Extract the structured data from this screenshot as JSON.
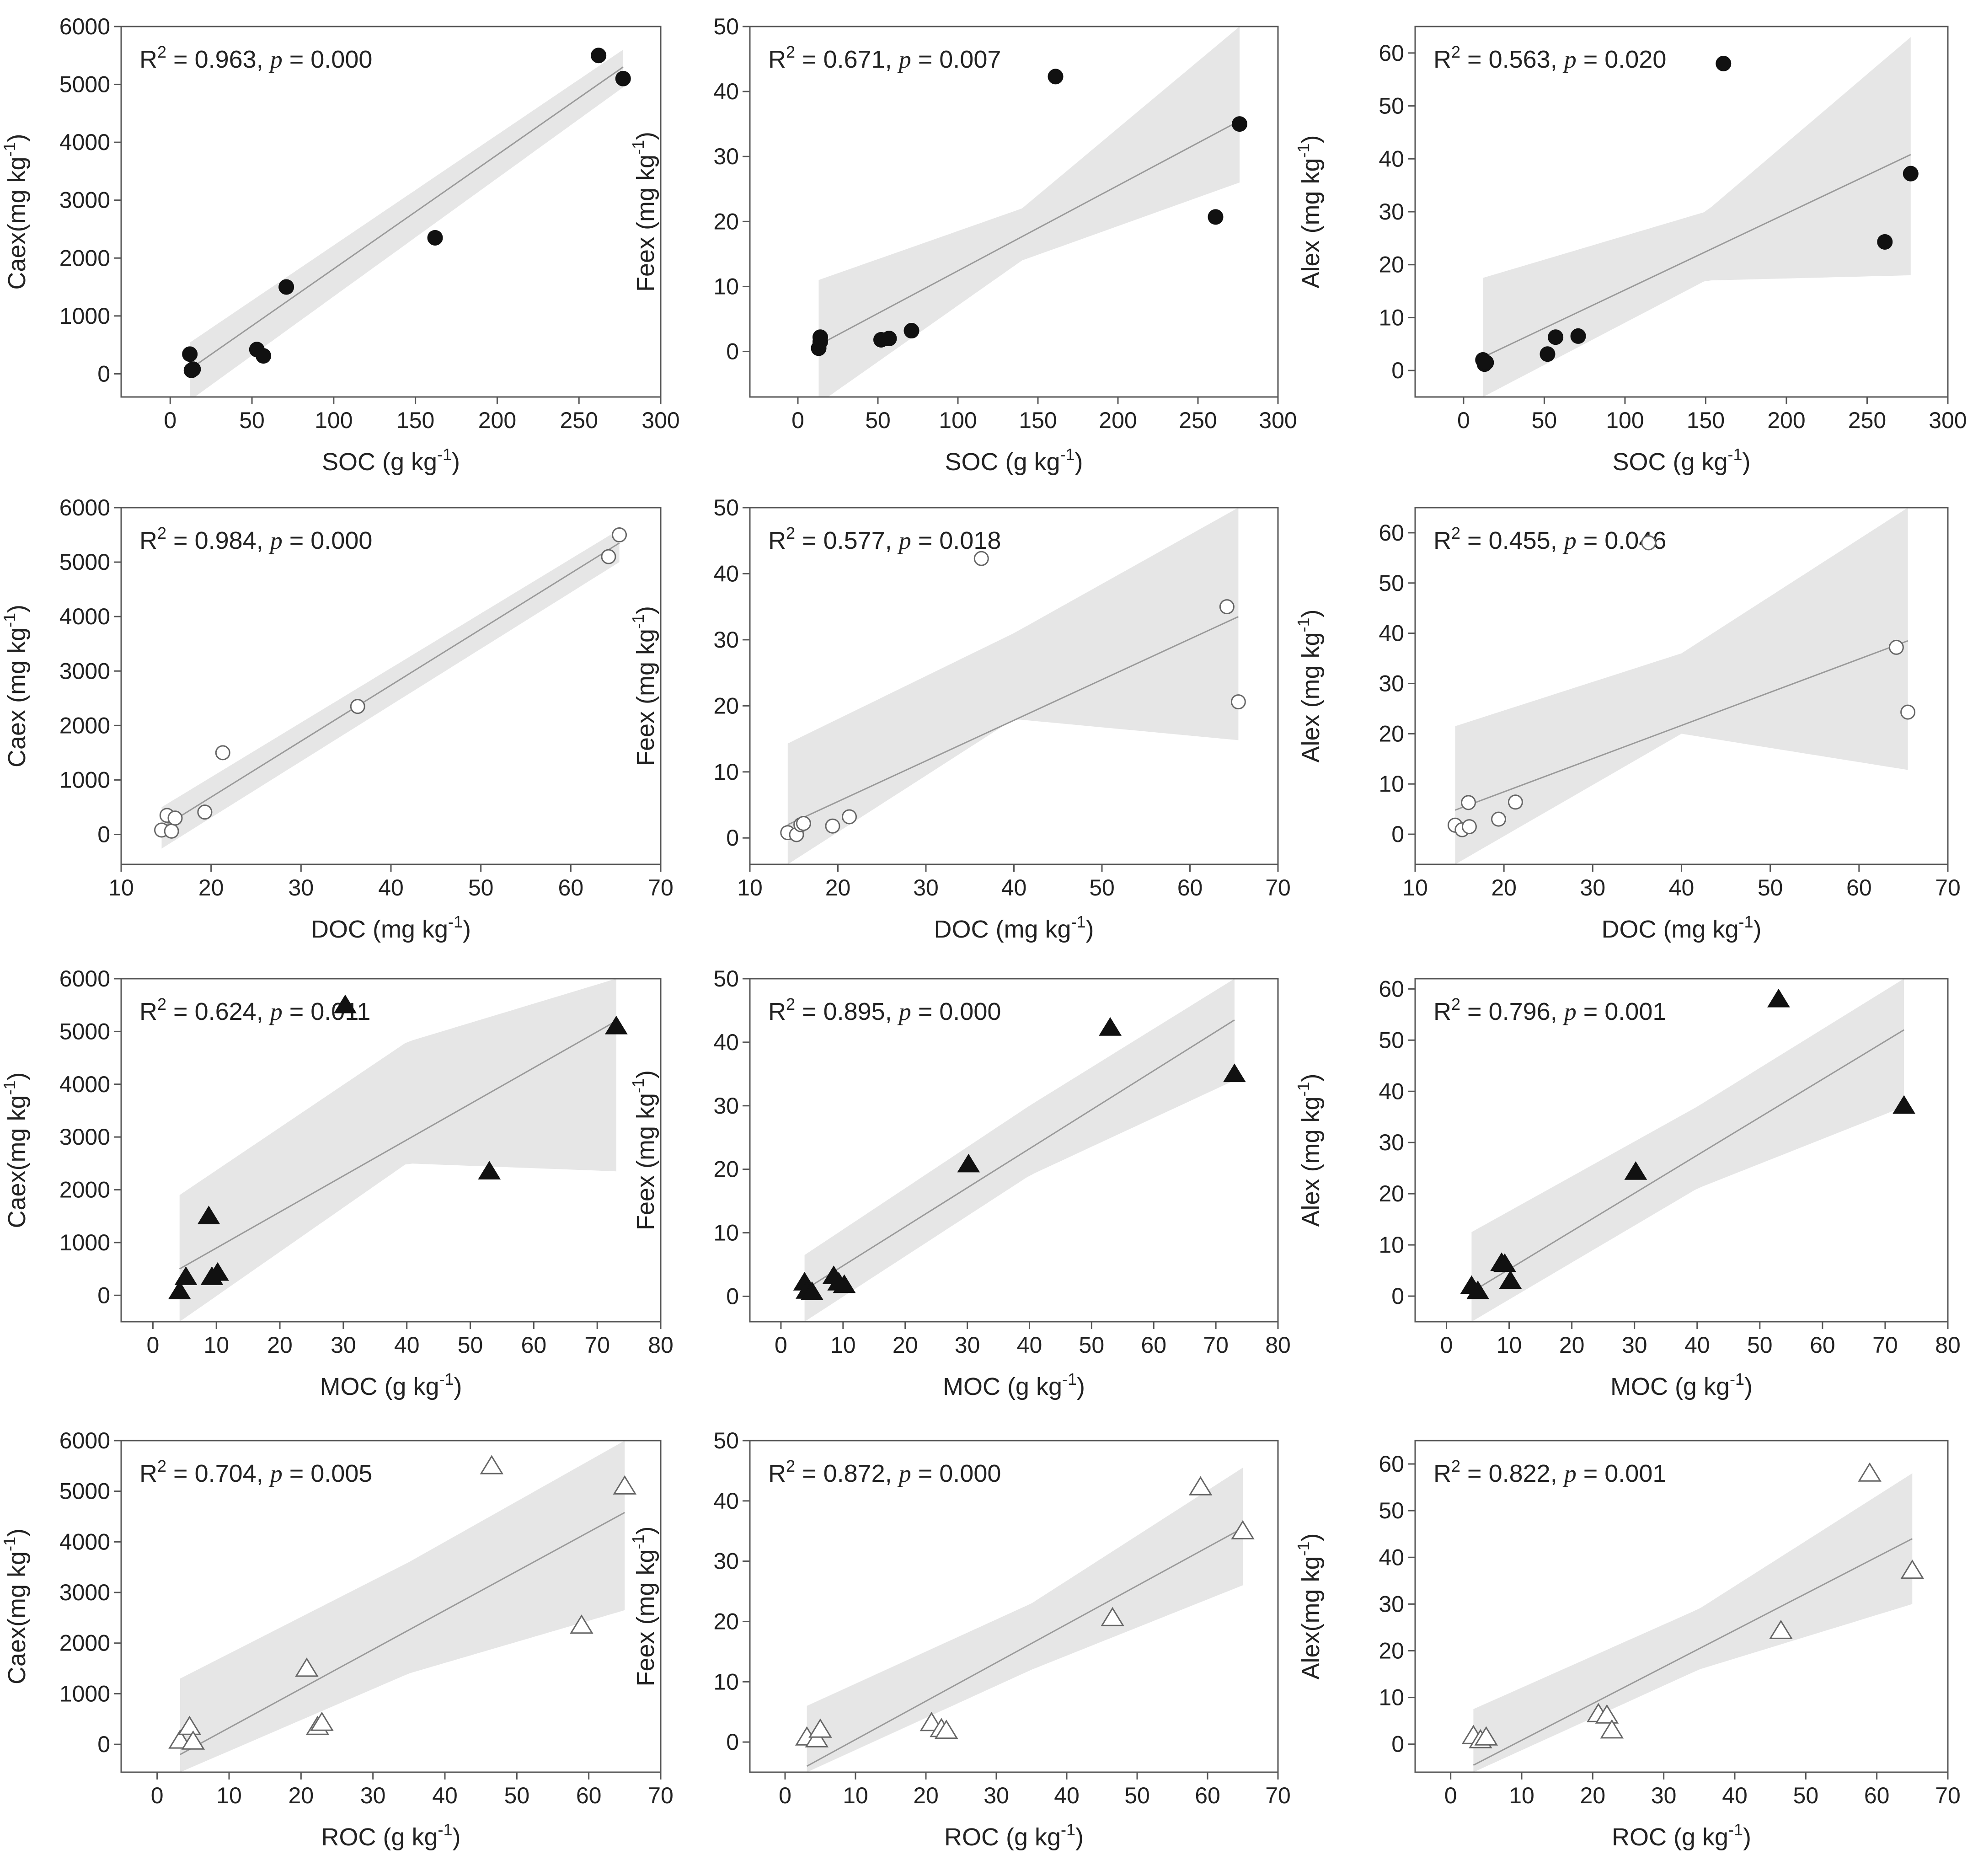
{
  "figure": {
    "background": "#ffffff",
    "band_color": "#e6e6e6",
    "line_color": "#9a9a9a",
    "text_color": "#222222"
  },
  "chart_data": [
    {
      "type": "scatter",
      "panel": "a1",
      "marker": "filled-circle",
      "xlabel": "SOC (g kg",
      "xunit_exp": "-1",
      "ylabel": "Caex(mg kg",
      "yunit_exp": "-1",
      "xlim": [
        -30,
        300
      ],
      "ylim": [
        -400,
        6000
      ],
      "xticks": [
        0,
        50,
        100,
        150,
        200,
        250,
        300
      ],
      "yticks": [
        0,
        1000,
        2000,
        3000,
        4000,
        5000,
        6000
      ],
      "annotation": {
        "prefix": "R",
        "sup": "2",
        "r2_text": " =  0.963, ",
        "p_label": "p",
        "p_text": " = 0.000"
      },
      "x": [
        12,
        14,
        13,
        53,
        57,
        71,
        162,
        262,
        277
      ],
      "y": [
        340,
        80,
        60,
        420,
        310,
        1500,
        2350,
        5500,
        5100
      ],
      "fit": {
        "x": [
          12,
          277
        ],
        "y": [
          80,
          5300
        ]
      },
      "band": {
        "x": [
          12,
          277
        ],
        "upper": [
          540,
          5600
        ],
        "lower": [
          -460,
          4950
        ]
      }
    },
    {
      "type": "scatter",
      "panel": "a2",
      "marker": "filled-circle",
      "xlabel": "SOC (g kg",
      "xunit_exp": "-1",
      "ylabel": "Feex (mg kg",
      "yunit_exp": "-1",
      "xlim": [
        -30,
        300
      ],
      "ylim": [
        -7,
        50
      ],
      "xticks": [
        0,
        50,
        100,
        150,
        200,
        250,
        300
      ],
      "yticks": [
        0,
        10,
        20,
        30,
        40,
        50
      ],
      "annotation": {
        "prefix": "R",
        "sup": "2",
        "r2_text": " = 0.671, ",
        "p_label": "p",
        "p_text": " = 0.007"
      },
      "x": [
        13,
        14,
        14,
        52,
        57,
        71,
        161,
        261,
        276
      ],
      "y": [
        0.5,
        1.5,
        2.2,
        1.8,
        2.0,
        3.2,
        42.3,
        20.7,
        35.0
      ],
      "fit": {
        "x": [
          13,
          276
        ],
        "y": [
          1.0,
          35.5
        ]
      },
      "band": {
        "x": [
          13,
          140,
          276
        ],
        "upper": [
          11.0,
          22.0,
          50.0
        ],
        "lower": [
          -8.0,
          14.0,
          26.0
        ]
      }
    },
    {
      "type": "scatter",
      "panel": "a3",
      "marker": "filled-circle",
      "xlabel": "SOC (g kg",
      "xunit_exp": "-1",
      "ylabel": "Alex (mg kg",
      "yunit_exp": "-1",
      "xlim": [
        -30,
        300
      ],
      "ylim": [
        -5,
        65
      ],
      "xticks": [
        0,
        50,
        100,
        150,
        200,
        250,
        300
      ],
      "yticks": [
        0,
        10,
        20,
        30,
        40,
        50,
        60
      ],
      "annotation": {
        "prefix": "R",
        "sup": "2",
        "r2_text": " = 0.563, ",
        "p_label": "p",
        "p_text": " = 0.020"
      },
      "x": [
        12,
        13,
        14,
        52,
        57,
        71,
        161,
        261,
        277
      ],
      "y": [
        2.0,
        1.2,
        1.5,
        3.1,
        6.3,
        6.5,
        58.0,
        24.3,
        37.2
      ],
      "fit": {
        "x": [
          12,
          277
        ],
        "y": [
          2.5,
          40.8
        ]
      },
      "band": {
        "x": [
          12,
          150,
          277
        ],
        "upper": [
          17.5,
          30.0,
          63.0
        ],
        "lower": [
          -5,
          17.0,
          18.0
        ]
      }
    },
    {
      "type": "scatter",
      "panel": "b1",
      "marker": "open-circle",
      "xlabel": "DOC (mg kg",
      "xunit_exp": "-1",
      "ylabel": "Caex (mg kg",
      "yunit_exp": "-1",
      "xlim": [
        10,
        70
      ],
      "ylim": [
        -550,
        6000
      ],
      "xticks": [
        10,
        20,
        30,
        40,
        50,
        60,
        70
      ],
      "yticks": [
        0,
        1000,
        2000,
        3000,
        4000,
        5000,
        6000
      ],
      "annotation": {
        "prefix": "R",
        "sup": "2",
        "r2_text": " = 0.984, ",
        "p_label": "p",
        "p_text": " = 0.000"
      },
      "x": [
        14.5,
        15.1,
        15.6,
        16.0,
        19.3,
        21.3,
        36.3,
        64.2,
        65.4
      ],
      "y": [
        80,
        350,
        60,
        300,
        410,
        1500,
        2350,
        5100,
        5500
      ],
      "fit": {
        "x": [
          14.5,
          65.4
        ],
        "y": [
          120,
          5350
        ]
      },
      "band": {
        "x": [
          14.5,
          65.4
        ],
        "upper": [
          500,
          5600
        ],
        "lower": [
          -260,
          5000
        ]
      }
    },
    {
      "type": "scatter",
      "panel": "b2",
      "marker": "open-circle",
      "xlabel": "DOC (mg kg",
      "xunit_exp": "-1",
      "ylabel": "Feex (mg kg",
      "yunit_exp": "-1",
      "xlim": [
        10,
        70
      ],
      "ylim": [
        -4,
        50
      ],
      "xticks": [
        10,
        20,
        30,
        40,
        50,
        60,
        70
      ],
      "yticks": [
        0,
        10,
        20,
        30,
        40,
        50
      ],
      "annotation": {
        "prefix": "R",
        "sup": "2",
        "r2_text": " = 0.577,  ",
        "p_label": "p",
        "p_text": " = 0.018"
      },
      "x": [
        14.3,
        15.3,
        15.8,
        16.1,
        19.4,
        21.3,
        36.3,
        64.2,
        65.5
      ],
      "y": [
        0.8,
        0.5,
        2.0,
        2.2,
        1.8,
        3.2,
        42.3,
        35.0,
        20.6
      ],
      "fit": {
        "x": [
          14.3,
          65.5
        ],
        "y": [
          2.0,
          33.5
        ]
      },
      "band": {
        "x": [
          14.3,
          40,
          65.5
        ],
        "upper": [
          14.3,
          31.0,
          50.0
        ],
        "lower": [
          -4,
          18.0,
          14.8
        ]
      }
    },
    {
      "type": "scatter",
      "panel": "b3",
      "marker": "open-circle",
      "xlabel": "DOC (mg kg",
      "xunit_exp": "-1",
      "ylabel": "Alex (mg kg",
      "yunit_exp": "-1",
      "xlim": [
        10,
        70
      ],
      "ylim": [
        -6,
        65
      ],
      "xticks": [
        10,
        20,
        30,
        40,
        50,
        60,
        70
      ],
      "yticks": [
        0,
        10,
        20,
        30,
        40,
        50,
        60
      ],
      "annotation": {
        "prefix": "R",
        "sup": "2",
        "r2_text": " = 0.455, ",
        "p_label": "p",
        "p_text": " = 0.046"
      },
      "x": [
        14.5,
        15.3,
        16.0,
        16.1,
        19.4,
        21.3,
        36.3,
        64.2,
        65.5
      ],
      "y": [
        1.8,
        0.9,
        6.3,
        1.5,
        3.0,
        6.4,
        58.0,
        37.2,
        24.3
      ],
      "fit": {
        "x": [
          14.5,
          65.5
        ],
        "y": [
          4.8,
          38.5
        ]
      },
      "band": {
        "x": [
          14.5,
          40,
          65.5
        ],
        "upper": [
          21.5,
          36.0,
          65.0
        ],
        "lower": [
          -6,
          20.0,
          12.8
        ]
      }
    },
    {
      "type": "scatter",
      "panel": "c1",
      "marker": "filled-triangle",
      "xlabel": "MOC (g kg",
      "xunit_exp": "-1",
      "ylabel": "Caex(mg kg",
      "yunit_exp": "-1",
      "xlim": [
        -5,
        80
      ],
      "ylim": [
        -500,
        6000
      ],
      "xticks": [
        0,
        10,
        20,
        30,
        40,
        50,
        60,
        70,
        80
      ],
      "yticks": [
        0,
        1000,
        2000,
        3000,
        4000,
        5000,
        6000
      ],
      "annotation": {
        "prefix": "R",
        "sup": "2",
        "r2_text": " = 0.624,  ",
        "p_label": "p",
        "p_text": " = 0.011"
      },
      "x": [
        4.2,
        5.2,
        8.8,
        9.3,
        10.2,
        30.3,
        53.0,
        73.0
      ],
      "y": [
        80,
        350,
        1500,
        350,
        430,
        5500,
        2350,
        5100
      ],
      "fit": {
        "x": [
          4.2,
          73.0
        ],
        "y": [
          500,
          5200
        ]
      },
      "band": {
        "x": [
          4.2,
          40,
          73.0
        ],
        "upper": [
          1900,
          4800,
          6000
        ],
        "lower": [
          -500,
          2500,
          2350
        ]
      }
    },
    {
      "type": "scatter",
      "panel": "c2",
      "marker": "filled-triangle",
      "xlabel": "MOC (g kg",
      "xunit_exp": "-1",
      "ylabel": "Feex (mg kg",
      "yunit_exp": "-1",
      "xlim": [
        -5,
        80
      ],
      "ylim": [
        -4,
        50
      ],
      "xticks": [
        0,
        10,
        20,
        30,
        40,
        50,
        60,
        70,
        80
      ],
      "yticks": [
        0,
        10,
        20,
        30,
        40,
        50
      ],
      "annotation": {
        "prefix": "R",
        "sup": "2",
        "r2_text": " = 0.895,  ",
        "p_label": "p",
        "p_text": " = 0.000"
      },
      "x": [
        3.8,
        4.2,
        5.0,
        8.5,
        9.3,
        10.2,
        30.2,
        53.0,
        73.0
      ],
      "y": [
        2.2,
        0.9,
        0.7,
        3.2,
        2.2,
        1.8,
        20.8,
        42.3,
        35.0
      ],
      "fit": {
        "x": [
          3.8,
          73.0
        ],
        "y": [
          1.0,
          43.5
        ]
      },
      "band": {
        "x": [
          3.8,
          40,
          73.0
        ],
        "upper": [
          6.5,
          30.0,
          50.0
        ],
        "lower": [
          -4,
          19.0,
          34.0
        ]
      }
    },
    {
      "type": "scatter",
      "panel": "c3",
      "marker": "filled-triangle",
      "xlabel": "MOC (g kg",
      "xunit_exp": "-1",
      "ylabel": "Alex (mg kg",
      "yunit_exp": "-1",
      "xlim": [
        -5,
        80
      ],
      "ylim": [
        -5,
        62
      ],
      "xticks": [
        0,
        10,
        20,
        30,
        40,
        50,
        60,
        70,
        80
      ],
      "yticks": [
        0,
        10,
        20,
        30,
        40,
        50,
        60
      ],
      "annotation": {
        "prefix": "R",
        "sup": "2",
        "r2_text": " = 0.796, ",
        "p_label": "p",
        "p_text": " = 0.001"
      },
      "x": [
        4.0,
        5.0,
        8.8,
        9.3,
        10.2,
        30.2,
        53.0,
        73.0
      ],
      "y": [
        2.0,
        1.0,
        6.5,
        6.3,
        3.0,
        24.3,
        58.0,
        37.2
      ],
      "fit": {
        "x": [
          4.0,
          73.0
        ],
        "y": [
          0.8,
          52.0
        ]
      },
      "band": {
        "x": [
          4.0,
          40,
          73.0
        ],
        "upper": [
          12.5,
          37.0,
          62.0
        ],
        "lower": [
          -5,
          21.0,
          37.0
        ]
      }
    },
    {
      "type": "scatter",
      "panel": "d1",
      "marker": "open-triangle",
      "xlabel": "ROC (g kg",
      "xunit_exp": "-1",
      "ylabel": "Caex(mg kg",
      "yunit_exp": "-1",
      "xlim": [
        -5,
        70
      ],
      "ylim": [
        -550,
        6000
      ],
      "xticks": [
        0,
        10,
        20,
        30,
        40,
        50,
        60,
        70
      ],
      "yticks": [
        0,
        1000,
        2000,
        3000,
        4000,
        5000,
        6000
      ],
      "annotation": {
        "prefix": "R",
        "sup": "2",
        "r2_text": " = 0.704, ",
        "p_label": "p",
        "p_text": " = 0.005"
      },
      "x": [
        3.2,
        4.5,
        5.0,
        20.8,
        22.3,
        22.9,
        46.5,
        59.0,
        65.0
      ],
      "y": [
        80,
        350,
        60,
        1500,
        350,
        430,
        5500,
        2350,
        5100
      ],
      "fit": {
        "x": [
          3.2,
          65.0
        ],
        "y": [
          -200,
          4580
        ]
      },
      "band": {
        "x": [
          3.2,
          35,
          65.0
        ],
        "upper": [
          1300,
          3600,
          6000
        ],
        "lower": [
          -550,
          1400,
          2650
        ]
      }
    },
    {
      "type": "scatter",
      "panel": "d2",
      "marker": "open-triangle",
      "xlabel": "ROC (g kg",
      "xunit_exp": "-1",
      "ylabel": "Feex (mg kg",
      "yunit_exp": "-1",
      "xlim": [
        -5,
        70
      ],
      "ylim": [
        -5,
        50
      ],
      "xticks": [
        0,
        10,
        20,
        30,
        40,
        50,
        60,
        70
      ],
      "yticks": [
        0,
        10,
        20,
        30,
        40,
        50
      ],
      "annotation": {
        "prefix": "R",
        "sup": "2",
        "r2_text": " = 0.872, ",
        "p_label": "p",
        "p_text": " = 0.000"
      },
      "x": [
        3.1,
        4.5,
        5.0,
        20.8,
        22.2,
        22.9,
        46.5,
        59.0,
        65.0
      ],
      "y": [
        0.8,
        0.5,
        2.1,
        3.2,
        2.2,
        1.9,
        20.6,
        42.3,
        35.0
      ],
      "fit": {
        "x": [
          3.1,
          65.0
        ],
        "y": [
          -4.0,
          35.5
        ]
      },
      "band": {
        "x": [
          3.1,
          35,
          65.0
        ],
        "upper": [
          6.0,
          23.0,
          45.5
        ],
        "lower": [
          -5,
          12.0,
          26.0
        ]
      }
    },
    {
      "type": "scatter",
      "panel": "d3",
      "marker": "open-triangle",
      "xlabel": "ROC (g kg",
      "xunit_exp": "-1",
      "ylabel": "Alex(mg kg",
      "yunit_exp": "-1",
      "xlim": [
        -5,
        70
      ],
      "ylim": [
        -6,
        65
      ],
      "xticks": [
        0,
        10,
        20,
        30,
        40,
        50,
        60,
        70
      ],
      "yticks": [
        0,
        10,
        20,
        30,
        40,
        50,
        60
      ],
      "annotation": {
        "prefix": "R",
        "sup": "2",
        "r2_text": " = 0.822, ",
        "p_label": "p",
        "p_text": " = 0.001"
      },
      "x": [
        3.2,
        4.2,
        5.0,
        20.8,
        22.0,
        22.7,
        46.5,
        59.0,
        65.0
      ],
      "y": [
        1.8,
        0.9,
        1.5,
        6.5,
        6.2,
        3.0,
        24.3,
        58.0,
        37.2
      ],
      "fit": {
        "x": [
          3.2,
          65.0
        ],
        "y": [
          -4.5,
          44.0
        ]
      },
      "band": {
        "x": [
          3.2,
          35,
          65.0
        ],
        "upper": [
          7.5,
          29.0,
          58.0
        ],
        "lower": [
          -6,
          16.0,
          30.0
        ]
      }
    }
  ]
}
